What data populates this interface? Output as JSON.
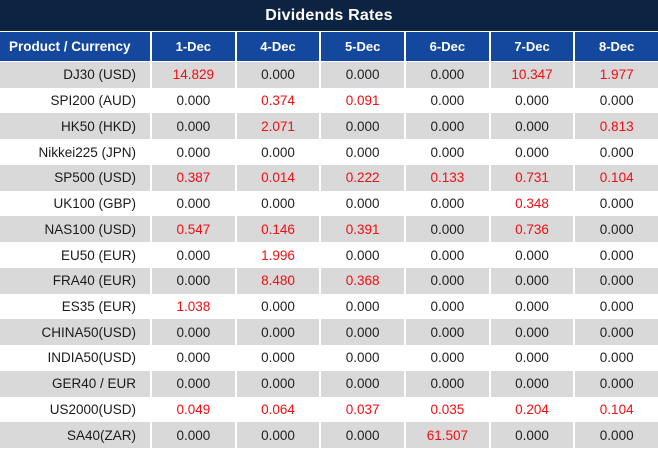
{
  "title": "Dividends Rates",
  "colors": {
    "title_bg": "#0d2342",
    "header_bg": "#14489e",
    "header_text": "#ffffff",
    "row_bg": "#ffffff",
    "row_alt_bg": "#d9d9d9",
    "grid": "#ffffff",
    "value_zero": "#1f1f1f",
    "value_nonzero": "#f20d12"
  },
  "chart_data": {
    "type": "table",
    "title": "Dividends Rates",
    "product_header": "Product / Currency",
    "date_columns": [
      "1-Dec",
      "4-Dec",
      "5-Dec",
      "6-Dec",
      "7-Dec",
      "8-Dec"
    ],
    "rows": [
      {
        "product": "DJ30 (USD)",
        "values": [
          "14.829",
          "0.000",
          "0.000",
          "0.000",
          "10.347",
          "1.977"
        ]
      },
      {
        "product": "SPI200 (AUD)",
        "values": [
          "0.000",
          "0.374",
          "0.091",
          "0.000",
          "0.000",
          "0.000"
        ]
      },
      {
        "product": "HK50 (HKD)",
        "values": [
          "0.000",
          "2.071",
          "0.000",
          "0.000",
          "0.000",
          "0.813"
        ]
      },
      {
        "product": "Nikkei225 (JPN)",
        "values": [
          "0.000",
          "0.000",
          "0.000",
          "0.000",
          "0.000",
          "0.000"
        ]
      },
      {
        "product": "SP500 (USD)",
        "values": [
          "0.387",
          "0.014",
          "0.222",
          "0.133",
          "0.731",
          "0.104"
        ]
      },
      {
        "product": "UK100 (GBP)",
        "values": [
          "0.000",
          "0.000",
          "0.000",
          "0.000",
          "0.348",
          "0.000"
        ]
      },
      {
        "product": "NAS100 (USD)",
        "values": [
          "0.547",
          "0.146",
          "0.391",
          "0.000",
          "0.736",
          "0.000"
        ]
      },
      {
        "product": "EU50 (EUR)",
        "values": [
          "0.000",
          "1.996",
          "0.000",
          "0.000",
          "0.000",
          "0.000"
        ]
      },
      {
        "product": "FRA40 (EUR)",
        "values": [
          "0.000",
          "8.480",
          "0.368",
          "0.000",
          "0.000",
          "0.000"
        ]
      },
      {
        "product": "ES35 (EUR)",
        "values": [
          "1.038",
          "0.000",
          "0.000",
          "0.000",
          "0.000",
          "0.000"
        ]
      },
      {
        "product": "CHINA50(USD)",
        "values": [
          "0.000",
          "0.000",
          "0.000",
          "0.000",
          "0.000",
          "0.000"
        ]
      },
      {
        "product": "INDIA50(USD)",
        "values": [
          "0.000",
          "0.000",
          "0.000",
          "0.000",
          "0.000",
          "0.000"
        ]
      },
      {
        "product": "GER40 / EUR",
        "values": [
          "0.000",
          "0.000",
          "0.000",
          "0.000",
          "0.000",
          "0.000"
        ]
      },
      {
        "product": "US2000(USD)",
        "values": [
          "0.049",
          "0.064",
          "0.037",
          "0.035",
          "0.204",
          "0.104"
        ]
      },
      {
        "product": "SA40(ZAR)",
        "values": [
          "0.000",
          "0.000",
          "0.000",
          "61.507",
          "0.000",
          "0.000"
        ]
      }
    ]
  }
}
